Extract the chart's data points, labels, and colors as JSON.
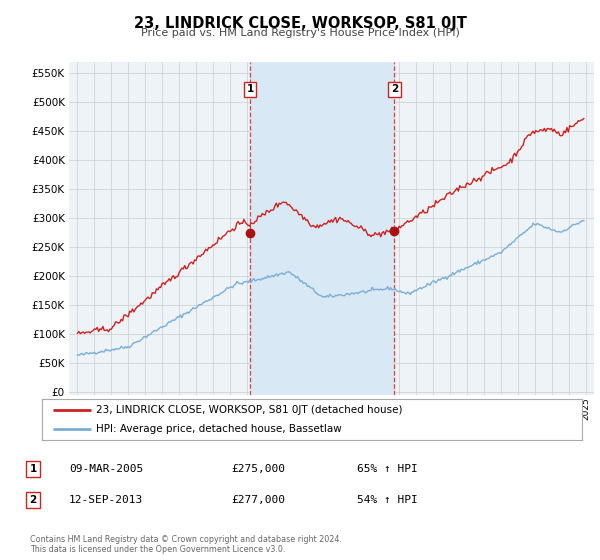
{
  "title": "23, LINDRICK CLOSE, WORKSOP, S81 0JT",
  "subtitle": "Price paid vs. HM Land Registry's House Price Index (HPI)",
  "ylabel_values": [
    0,
    50000,
    100000,
    150000,
    200000,
    250000,
    300000,
    350000,
    400000,
    450000,
    500000,
    550000
  ],
  "xlim": [
    1994.5,
    2025.5
  ],
  "ylim": [
    -5000,
    570000
  ],
  "sale1_date": 2005.19,
  "sale1_price": 275000,
  "sale2_date": 2013.71,
  "sale2_price": 277000,
  "hpi_color": "#7aaed6",
  "price_color": "#cc2222",
  "dot_color": "#aa1111",
  "grid_color": "#cccccc",
  "span_color": "#d8e8f4",
  "vline_color": "#dd4444",
  "legend_label_price": "23, LINDRICK CLOSE, WORKSOP, S81 0JT (detached house)",
  "legend_label_hpi": "HPI: Average price, detached house, Bassetlaw",
  "table_row1": [
    "1",
    "09-MAR-2005",
    "£275,000",
    "65% ↑ HPI"
  ],
  "table_row2": [
    "2",
    "12-SEP-2013",
    "£277,000",
    "54% ↑ HPI"
  ],
  "footer": "Contains HM Land Registry data © Crown copyright and database right 2024.\nThis data is licensed under the Open Government Licence v3.0."
}
